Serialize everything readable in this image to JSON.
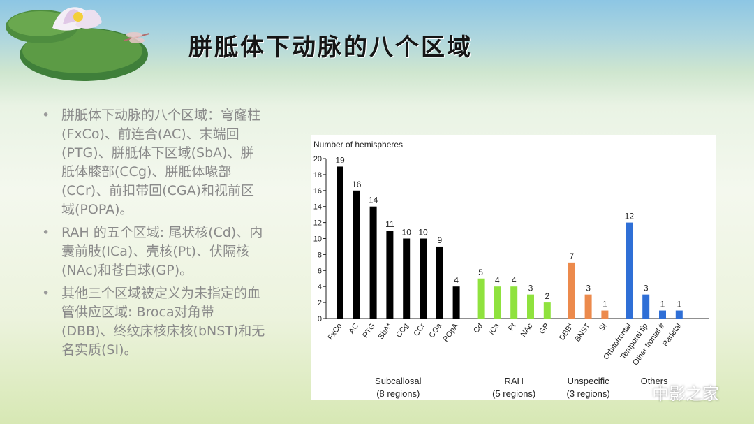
{
  "slide": {
    "title": "胼胝体下动脉的八个区域",
    "bullets": [
      "胼胝体下动脉的八个区域：穹窿柱(FxCo)、前连合(AC)、末端回(PTG)、胼胝体下区域(SbA)、胼胝体膝部(CCg)、胼胝体喙部(CCr)、前扣带回(CGA)和视前区域(POPA)。",
      "RAH 的五个区域: 尾状核(Cd)、内囊前肢(ICa)、壳核(Pt)、伏隔核(NAc)和苍白球(GP)。",
      "其他三个区域被定义为未指定的血管供应区域: Broca对角带(DBB)、终纹床核床核(bNST)和无名实质(SI)。"
    ],
    "bullet_marker": "•",
    "watermark": "中影之家"
  },
  "chart_data": {
    "type": "bar",
    "ylabel": "Number of hemispheres",
    "ylim": [
      0,
      20
    ],
    "yticks": [
      0,
      2,
      4,
      6,
      8,
      10,
      12,
      14,
      16,
      18,
      20
    ],
    "grid": false,
    "groups": [
      {
        "label": "Subcallosal",
        "sublabel": "(8 regions)",
        "color": "#000000",
        "categories": [
          "FxCo",
          "AC",
          "PTG",
          "SbA*",
          "CCg",
          "CCr",
          "CGa",
          "POpA"
        ],
        "values": [
          19,
          16,
          14,
          11,
          10,
          10,
          9,
          4
        ]
      },
      {
        "label": "RAH",
        "sublabel": "(5 regions)",
        "color": "#8fe23e",
        "categories": [
          "Cd",
          "ICa",
          "Pt",
          "NAc",
          "GP"
        ],
        "values": [
          5,
          4,
          4,
          3,
          2
        ]
      },
      {
        "label": "Unspecific",
        "sublabel": "(3 regions)",
        "color": "#ec8a4c",
        "categories": [
          "DBB*",
          "BNST",
          "SI"
        ],
        "values": [
          7,
          3,
          1
        ]
      },
      {
        "label": "Others",
        "sublabel": "",
        "color": "#2f6fd6",
        "categories": [
          "Orbitofrontal",
          "Temporal tip",
          "Other frontal #",
          "Parietal"
        ],
        "values": [
          12,
          3,
          1,
          1
        ]
      }
    ]
  }
}
